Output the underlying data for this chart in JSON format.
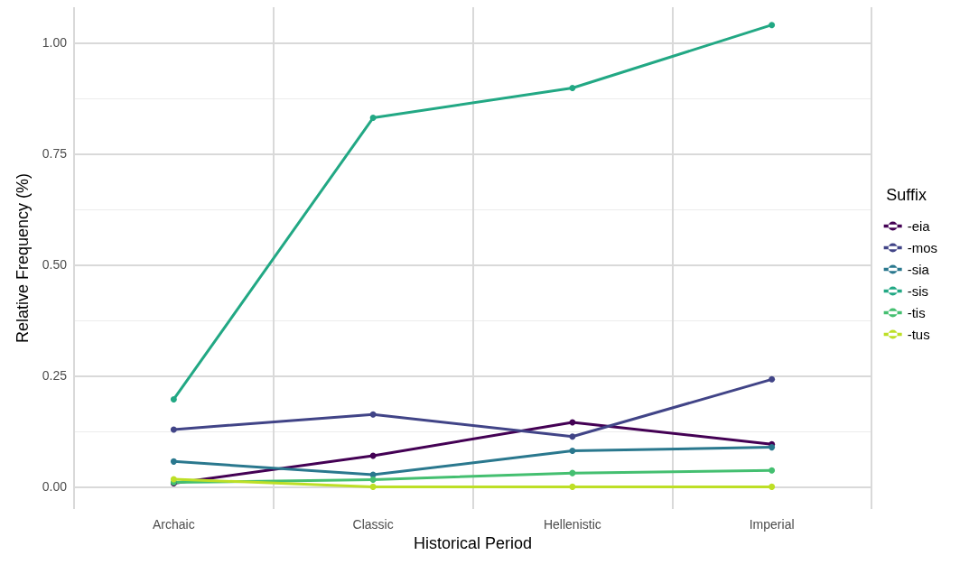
{
  "chart_data": {
    "type": "line",
    "xlabel": "Historical Period",
    "ylabel": "Relative Frequency (%)",
    "legend_title": "Suffix",
    "categories": [
      "Archaic",
      "Classic",
      "Hellenistic",
      "Imperial"
    ],
    "series": [
      {
        "name": "-eia",
        "color": "#440154",
        "values": [
          0.008,
          0.07,
          0.145,
          0.096
        ]
      },
      {
        "name": "-mos",
        "color": "#414487",
        "values": [
          0.129,
          0.163,
          0.113,
          0.242
        ]
      },
      {
        "name": "-sia",
        "color": "#2a788e",
        "values": [
          0.057,
          0.027,
          0.081,
          0.089
        ]
      },
      {
        "name": "-sis",
        "color": "#22a884",
        "values": [
          0.197,
          0.831,
          0.898,
          1.04
        ]
      },
      {
        "name": "-tis",
        "color": "#44bf70",
        "values": [
          0.01,
          0.016,
          0.031,
          0.037
        ]
      },
      {
        "name": "-tus",
        "color": "#bddf26",
        "values": [
          0.017,
          0,
          0,
          0
        ]
      }
    ],
    "ylim": [
      -0.05,
      1.08
    ],
    "yticks": [
      {
        "value": 0,
        "label": "0.00"
      },
      {
        "value": 0.25,
        "label": "0.25"
      },
      {
        "value": 0.5,
        "label": "0.50"
      },
      {
        "value": 0.75,
        "label": "0.75"
      },
      {
        "value": 1,
        "label": "1.00"
      }
    ],
    "grid": true,
    "legend": "right",
    "marker": "circle",
    "line_style": "solid"
  }
}
